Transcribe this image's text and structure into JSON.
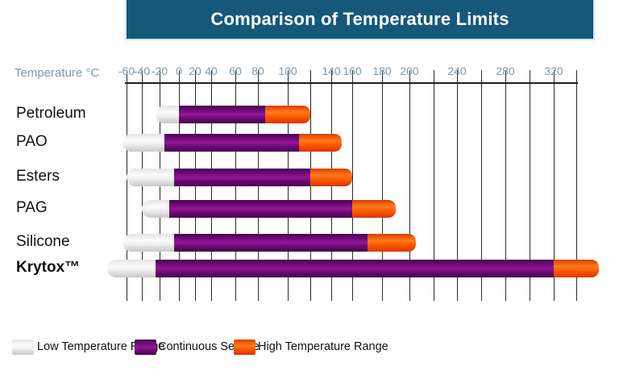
{
  "chart_data": {
    "type": "bar",
    "subtype": "horizontal-stacked-temperature-ranges",
    "title": "Comparison of Temperature Limits",
    "xlabel": "Temperature °C",
    "xlim": [
      -60,
      340
    ],
    "tick_step": 20,
    "grid": true,
    "legend_position": "bottom",
    "ticks": [
      {
        "t": -60,
        "label": "-60"
      },
      {
        "t": -40,
        "label": "-40"
      },
      {
        "t": -20,
        "label": "-20"
      },
      {
        "t": 0,
        "label": "0"
      },
      {
        "t": 20,
        "label": "20"
      },
      {
        "t": 40,
        "label": "40"
      },
      {
        "t": 60,
        "label": "60"
      },
      {
        "t": 80,
        "label": "80"
      },
      {
        "t": 100,
        "label": "100"
      },
      {
        "t": 120,
        "label": ""
      },
      {
        "t": 140,
        "label": "140"
      },
      {
        "t": 160,
        "label": "160"
      },
      {
        "t": 180,
        "label": "180"
      },
      {
        "t": 200,
        "label": "200"
      },
      {
        "t": 220,
        "label": ""
      },
      {
        "t": 240,
        "label": "240"
      },
      {
        "t": 260,
        "label": ""
      },
      {
        "t": 280,
        "label": "280"
      },
      {
        "t": 300,
        "label": ""
      },
      {
        "t": 320,
        "label": "320"
      },
      {
        "t": 340,
        "label": ""
      }
    ],
    "categories": [
      "Petroleum",
      "PAO",
      "Esters",
      "PAG",
      "Silicone",
      "Krytox™"
    ],
    "rows": [
      {
        "label": "Petroleum",
        "bold": false,
        "low_start": -25,
        "continuous_start": 0,
        "continuous_end": 85,
        "high_end": 120
      },
      {
        "label": "PAO",
        "bold": false,
        "low_start": -65,
        "continuous_start": -15,
        "continuous_end": 110,
        "high_end": 150
      },
      {
        "label": "Esters",
        "bold": false,
        "low_start": -60,
        "continuous_start": -5,
        "continuous_end": 120,
        "high_end": 160
      },
      {
        "label": "PAG",
        "bold": false,
        "low_start": -40,
        "continuous_start": -10,
        "continuous_end": 160,
        "high_end": 190
      },
      {
        "label": "Silicone",
        "bold": false,
        "low_start": -65,
        "continuous_start": -5,
        "continuous_end": 170,
        "high_end": 205
      },
      {
        "label": "Krytox™",
        "bold": true,
        "low_start": -85,
        "continuous_start": -25,
        "continuous_end": 320,
        "high_end": 360
      }
    ],
    "series": [
      {
        "name": "Low Temperature Range",
        "segment": "low",
        "color": "#e4e4e4"
      },
      {
        "name": "Continuous Service",
        "segment": "continuous",
        "color": "#5c0a64"
      },
      {
        "name": "High Temperature Range",
        "segment": "high",
        "color": "#ff4d00"
      }
    ]
  },
  "colors": {
    "header_bg": "#15587a",
    "header_border": "#c9e7f5",
    "header_text": "#ffffff",
    "tick_text": "#7f99ac",
    "gridline": "#2a2a2a",
    "label_text": "#111111",
    "low_range": "#e4e4e4",
    "continuous_service": "#5c0a64",
    "high_range": "#ff4d00"
  }
}
